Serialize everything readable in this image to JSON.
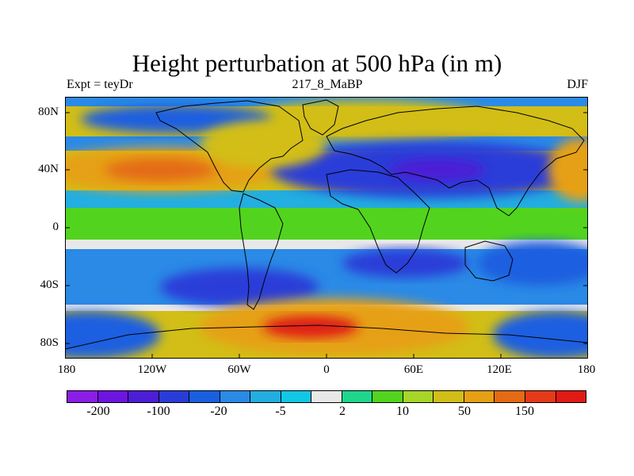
{
  "title": "Height perturbation at 500 hPa (in m)",
  "subtitle_left": "Expt = teyDr",
  "subtitle_center": "217_8_MaBP",
  "subtitle_right": "DJF",
  "y_axis_labels": [
    "80N",
    "40N",
    "0",
    "40S",
    "80S"
  ],
  "x_axis_labels": [
    "180",
    "120W",
    "60W",
    "0",
    "60E",
    "120E",
    "180"
  ],
  "colorbar": {
    "colors": [
      "#8a1ee6",
      "#6e14e0",
      "#4d1ed6",
      "#2a3cd8",
      "#1a5fe0",
      "#2a8ae6",
      "#22aee0",
      "#12c6e6",
      "#e8e8e8",
      "#1ed68c",
      "#52d41e",
      "#a6d628",
      "#d2be16",
      "#e6a014",
      "#e46a14",
      "#e43a1a",
      "#e01a14"
    ],
    "labels": [
      "-200",
      "-100",
      "-20",
      "-5",
      "2",
      "10",
      "50",
      "150"
    ]
  },
  "field_palette": {
    "strong_negative": "#2a3cd8",
    "deep_negative": "#4d1ed6",
    "negative": "#1a5fe0",
    "weak_negative": "#2a8ae6",
    "slight_negative": "#22aee0",
    "near_zero": "#e8e8e8",
    "slight_positive": "#52d41e",
    "positive": "#a6d628",
    "strong_positive": "#d2be16",
    "high_positive": "#e6a014",
    "peak_positive": "#e46a14",
    "extreme_positive": "#e01a14"
  }
}
